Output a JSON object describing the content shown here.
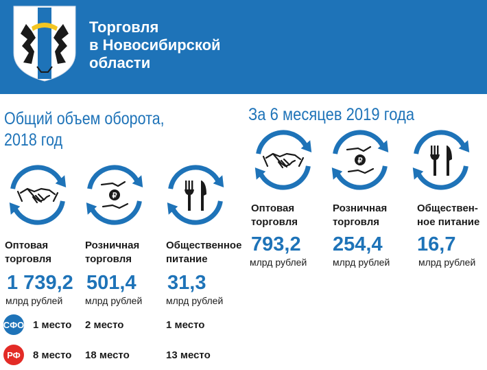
{
  "header": {
    "title_line1": "Торговля",
    "title_line2": "в Новосибирской",
    "title_line3": "области"
  },
  "section_2018": {
    "title_line1": "Общий объем оборота,",
    "title_line2": "2018 год",
    "items": [
      {
        "label_line1": "Оптовая",
        "label_line2": "торговля",
        "value": "1 739,2",
        "unit": "млрд рублей",
        "sfo_rank": "1 место",
        "rf_rank": "8 место"
      },
      {
        "label_line1": "Розничная",
        "label_line2": "торговля",
        "value": "501,4",
        "unit": "млрд рублей",
        "sfo_rank": "2 место",
        "rf_rank": "18 место"
      },
      {
        "label_line1": "Общественное",
        "label_line2": "питание",
        "value": "31,3",
        "unit": "млрд рублей",
        "sfo_rank": "1 место",
        "rf_rank": "13 место"
      }
    ],
    "badge_sfo": "СФО",
    "badge_rf": "РФ"
  },
  "section_2019": {
    "title": "За 6 месяцев 2019 года",
    "items": [
      {
        "label_line1": "Оптовая",
        "label_line2": "торговля",
        "value": "793,2",
        "unit": "млрд рублей"
      },
      {
        "label_line1": "Розничная",
        "label_line2": "торговля",
        "value": "254,4",
        "unit": "млрд рублей"
      },
      {
        "label_line1": "Обществен-",
        "label_line2": "ное питание",
        "value": "16,7",
        "unit": "млрд рублей"
      }
    ]
  },
  "colors": {
    "brand_blue": "#1e73b8",
    "sfo_badge": "#1e73b8",
    "rf_badge": "#e32b26"
  },
  "icons": [
    "coat-of-arms-icon",
    "handshake-icon",
    "ruble-hands-icon",
    "fork-knife-icon"
  ]
}
